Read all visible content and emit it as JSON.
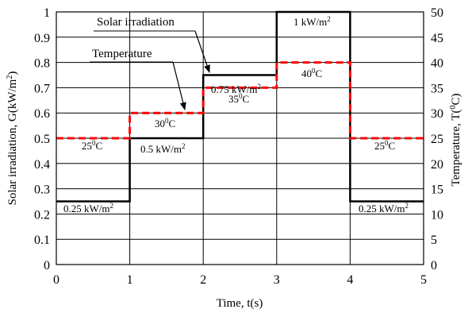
{
  "chart_data": {
    "type": "line",
    "title": "",
    "xlabel": "Time, t(s)",
    "ylabel_left": [
      "Solar irradiation, G(kW/m",
      "2",
      ")"
    ],
    "ylabel_right": [
      "Temperature, T(",
      "0",
      "C)"
    ],
    "xlim": [
      0,
      5
    ],
    "ylim_left": [
      0,
      1
    ],
    "ylim_right": [
      0,
      50
    ],
    "grid": true,
    "x_ticks": [
      "0",
      "1",
      "2",
      "3",
      "4",
      "5"
    ],
    "y_ticks_left": [
      "0",
      "0.1",
      "0.2",
      "0.3",
      "0.4",
      "0.5",
      "0.6",
      "0.7",
      "0.8",
      "0.9",
      "1"
    ],
    "y_ticks_right": [
      "0",
      "5",
      "10",
      "15",
      "20",
      "25",
      "30",
      "35",
      "40",
      "45",
      "50"
    ],
    "series": [
      {
        "name": "Solar irradiation",
        "axis": "left",
        "color": "#000000",
        "style": "solid",
        "x": [
          0,
          1,
          1,
          2,
          2,
          3,
          3,
          4,
          4,
          5
        ],
        "y": [
          0.25,
          0.25,
          0.5,
          0.5,
          0.75,
          0.75,
          1.0,
          1.0,
          0.25,
          0.25
        ]
      },
      {
        "name": "Temperature",
        "axis": "right",
        "color": "#ff0000",
        "style": "dashed",
        "x": [
          0,
          1,
          1,
          2,
          2,
          3,
          3,
          4,
          4,
          5
        ],
        "y": [
          25,
          25,
          30,
          30,
          35,
          35,
          40,
          40,
          25,
          25
        ]
      }
    ],
    "annotations": {
      "g1": [
        "0.25 kW/m",
        "2"
      ],
      "g2": [
        "0.5 kW/m",
        "2"
      ],
      "g3": [
        "0.75 kW/m",
        "2"
      ],
      "g4": [
        "1 kW/m",
        "2"
      ],
      "g5": [
        "0.25 kW/m",
        "2"
      ],
      "t1": [
        "25",
        "0",
        "C"
      ],
      "t2": [
        "30",
        "0",
        "C"
      ],
      "t3": [
        "35",
        "0",
        "C"
      ],
      "t4": [
        "40",
        "0",
        "C"
      ],
      "t5": [
        "25",
        "0",
        "C"
      ]
    },
    "callouts": {
      "solar": "Solar irradiation",
      "temperature": "Temperature"
    }
  }
}
